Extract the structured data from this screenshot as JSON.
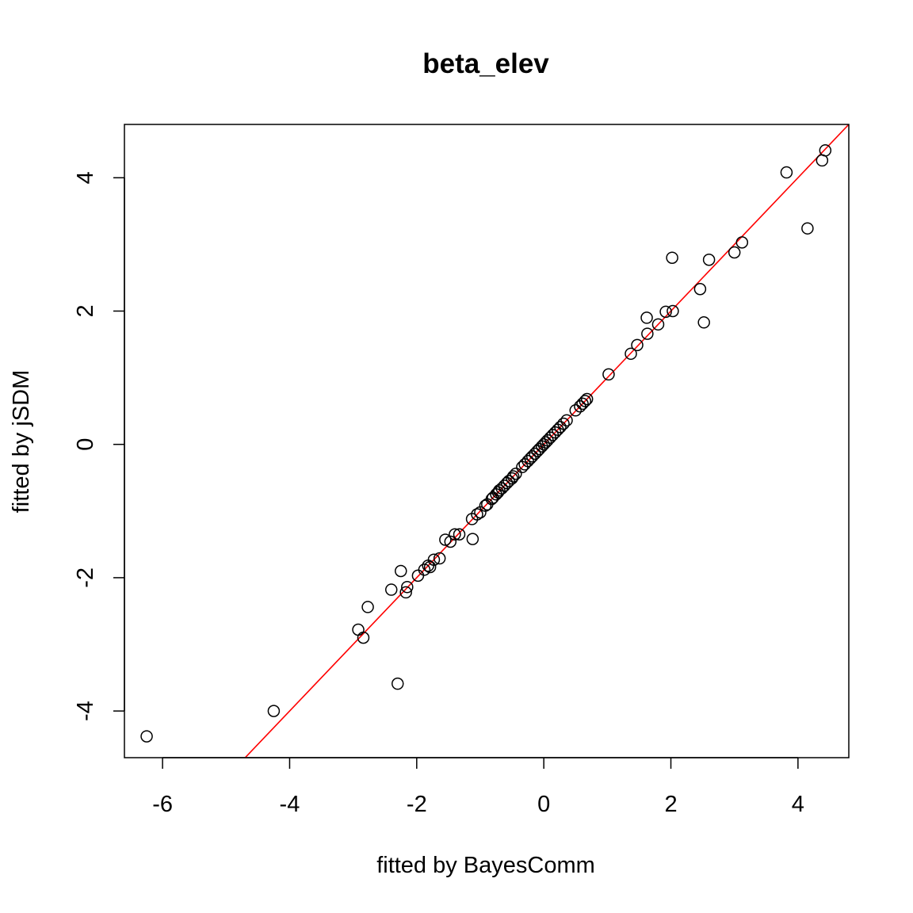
{
  "chart_data": {
    "type": "scatter",
    "title": "beta_elev",
    "xlabel": "fitted by BayesComm",
    "ylabel": "fitted by jSDM",
    "xlim": [
      -6.6,
      4.8
    ],
    "ylim": [
      -4.7,
      4.8
    ],
    "xticks": [
      -6,
      -4,
      -2,
      0,
      2,
      4
    ],
    "yticks": [
      -4,
      -2,
      0,
      2,
      4
    ],
    "grid": false,
    "reference_line": {
      "intercept": 0,
      "slope": 1,
      "color": "#ff0000"
    },
    "points": {
      "x": [
        -6.25,
        -4.25,
        -2.92,
        -2.84,
        -2.77,
        -2.4,
        -2.3,
        -2.25,
        -2.17,
        -2.15,
        -1.98,
        -1.88,
        -1.82,
        -1.79,
        -1.73,
        -1.64,
        -1.55,
        -1.47,
        -1.4,
        -1.33,
        -1.13,
        -1.12,
        -1.05,
        -1.0,
        -0.92,
        -0.89,
        -0.82,
        -0.8,
        -0.75,
        -0.72,
        -0.7,
        -0.66,
        -0.62,
        -0.58,
        -0.55,
        -0.5,
        -0.48,
        -0.44,
        -0.34,
        -0.3,
        -0.25,
        -0.21,
        -0.18,
        -0.14,
        -0.1,
        -0.07,
        -0.03,
        0.0,
        0.03,
        0.06,
        0.1,
        0.14,
        0.18,
        0.22,
        0.26,
        0.31,
        0.36,
        0.5,
        0.57,
        0.61,
        0.65,
        0.68,
        1.02,
        1.37,
        1.47,
        1.62,
        1.63,
        1.8,
        1.92,
        2.02,
        2.03,
        2.46,
        2.52,
        2.6,
        3.0,
        3.12,
        3.82,
        4.15,
        4.38,
        4.43
      ],
      "y": [
        -4.38,
        -4.0,
        -2.78,
        -2.9,
        -2.44,
        -2.18,
        -3.59,
        -1.9,
        -2.22,
        -2.14,
        -1.97,
        -1.88,
        -1.82,
        -1.84,
        -1.73,
        -1.71,
        -1.43,
        -1.46,
        -1.35,
        -1.35,
        -1.12,
        -1.42,
        -1.05,
        -1.02,
        -0.92,
        -0.9,
        -0.82,
        -0.8,
        -0.75,
        -0.72,
        -0.69,
        -0.66,
        -0.62,
        -0.58,
        -0.55,
        -0.51,
        -0.48,
        -0.44,
        -0.34,
        -0.3,
        -0.25,
        -0.21,
        -0.18,
        -0.14,
        -0.1,
        -0.07,
        -0.03,
        0.0,
        0.03,
        0.06,
        0.1,
        0.14,
        0.18,
        0.22,
        0.26,
        0.31,
        0.36,
        0.51,
        0.57,
        0.61,
        0.65,
        0.68,
        1.05,
        1.36,
        1.49,
        1.9,
        1.66,
        1.8,
        1.99,
        2.8,
        2.0,
        2.33,
        1.83,
        2.77,
        2.88,
        3.03,
        4.08,
        3.24,
        4.26,
        4.41
      ]
    }
  }
}
